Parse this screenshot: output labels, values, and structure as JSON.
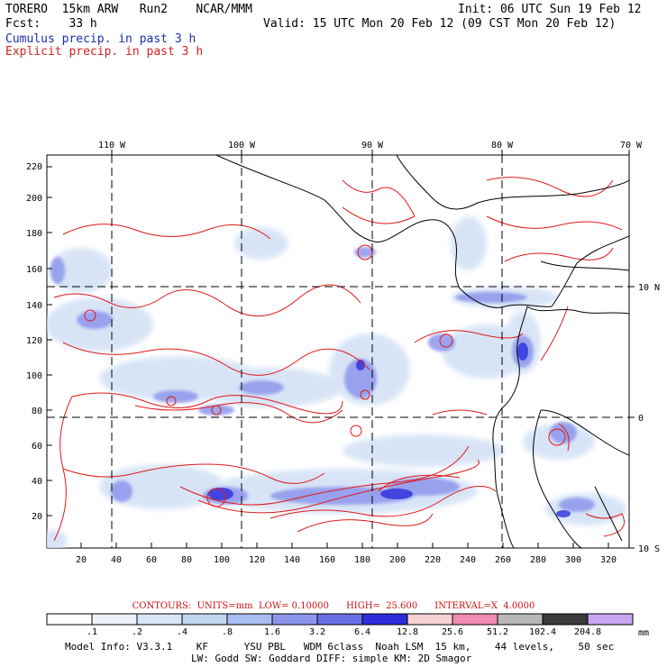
{
  "header": {
    "line1_left": "TORERO  15km ARW   Run2    NCAR/MMM",
    "line1_right": "Init: 06 UTC Sun 19 Feb 12",
    "line2_left": "Fcst:    33 h",
    "line2_right": "Valid: 15 UTC Mon 20 Feb 12 (09 CST Mon 20 Feb 12)",
    "cumulus_label": "Cumulus precip. in past 3 h",
    "explicit_label": "Explicit precip. in past 3 h"
  },
  "map": {
    "top_lon_labels": [
      "110 W",
      "100 W",
      "90 W",
      "80 W",
      "70 W"
    ],
    "right_lat_labels": [
      "10 N",
      "0",
      "10 S"
    ],
    "left_y_ticks": [
      "220",
      "200",
      "180",
      "160",
      "140",
      "120",
      "100",
      "80",
      "60",
      "40",
      "20"
    ],
    "bottom_x_ticks": [
      "20",
      "40",
      "60",
      "80",
      "100",
      "120",
      "140",
      "160",
      "180",
      "200",
      "220",
      "240",
      "260",
      "280",
      "300",
      "320"
    ]
  },
  "colorbar": {
    "values": [
      ".1",
      ".2",
      ".4",
      ".8",
      "1.6",
      "3.2",
      "6.4",
      "12.8",
      "25.6",
      "51.2",
      "102.4",
      "204.8"
    ],
    "unit": "mm",
    "colors": [
      "#ffffff",
      "#eef3fb",
      "#d9e6f6",
      "#c3d6f1",
      "#a8bdf0",
      "#8c96ec",
      "#6a6ee6",
      "#2d2ddc",
      "#f7d2d6",
      "#f28cb2",
      "#b8b8b8",
      "#3a3a3a",
      "#c9a6f0"
    ]
  },
  "contours_line": "CONTOURS:  UNITS=mm  LOW= 0.10000      HIGH=  25.600      INTERVAL=X  4.0000",
  "model_info": {
    "line1": "Model Info: V3.3.1    KF      YSU PBL   WDM 6class  Noah LSM  15 km,    44 levels,    50 sec",
    "line2": "LW: Godd SW: Goddard DIFF: simple KM: 2D Smagor"
  }
}
